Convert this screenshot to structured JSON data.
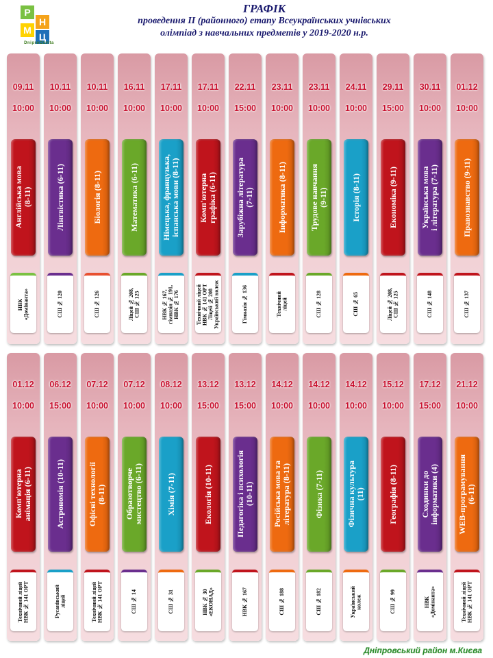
{
  "logo": {
    "letters": [
      "Р",
      "Н",
      "М",
      "Ц"
    ],
    "colors": [
      "#7ac142",
      "#f5a31a",
      "#ffd200",
      "#1f6fb8"
    ],
    "subtitle": "DniproOsvita"
  },
  "heading": {
    "title": "ГРАФІК",
    "line2": "проведення ІІ (районного) етапу Всеукраїнських учнівських",
    "line3": "олімпіад з навчальних предметів у 2019-2020 н.р."
  },
  "row1": [
    {
      "date": "09.11",
      "time": "10:00",
      "subject": "Англійська мова\n(8-11)",
      "color": "#c0141c",
      "venue": "НВК\n«Домінанта»",
      "accent": "#7ac142"
    },
    {
      "date": "10.11",
      "time": "10:00",
      "subject": "Лінгвістика (6-11)",
      "color": "#6a2e8e",
      "venue": "СШ № 120",
      "accent": "#6a2e8e"
    },
    {
      "date": "10.11",
      "time": "10:00",
      "subject": "Біологія (8-11)",
      "color": "#ee6a10",
      "venue": "СШ № 126",
      "accent": "#e85030"
    },
    {
      "date": "16.11",
      "time": "10:00",
      "subject": "Математика (6-11)",
      "color": "#6aa829",
      "venue": "Ліцей № 208,\nСШ № 125",
      "accent": "#6aa829"
    },
    {
      "date": "17.11",
      "time": "10:00",
      "subject": "Німецька, французька,\nіспанська мови (8-11)",
      "color": "#1aa0c8",
      "venue": "НВК № 167,\nгімназія № 191,\nНВК № 176",
      "accent": "#1aa0c8"
    },
    {
      "date": "17.11",
      "time": "10:00",
      "subject": "Комп'ютерна\nграфіка (6-11)",
      "color": "#c0141c",
      "venue": "Технічний ліцей\nНВК № 141 ОРТ\nЛіцей № 208\nУкраїнський колеж",
      "accent": "#c0141c"
    },
    {
      "date": "22.11",
      "time": "15:00",
      "subject": "Зарубіжна література\n(7-11)",
      "color": "#6a2e8e",
      "venue": "Гімназія № 136",
      "accent": "#1aa0c8"
    },
    {
      "date": "23.11",
      "time": "10:00",
      "subject": "Інформатика (8-11)",
      "color": "#ee6a10",
      "venue": "Технічний\nліцей",
      "accent": "#c0141c"
    },
    {
      "date": "23.11",
      "time": "10:00",
      "subject": "Трудове навчання\n(9-11)",
      "color": "#6aa829",
      "venue": "СШ № 128",
      "accent": "#6aa829"
    },
    {
      "date": "24.11",
      "time": "10:00",
      "subject": "Історія (8-11)",
      "color": "#1aa0c8",
      "venue": "СШ № 65",
      "accent": "#ee6a10"
    },
    {
      "date": "29.11",
      "time": "15:00",
      "subject": "Економіка (9-11)",
      "color": "#c0141c",
      "venue": "Ліцей № 208,\nСШ № 125",
      "accent": "#c0141c"
    },
    {
      "date": "30.11",
      "time": "10:00",
      "subject": "Українська мова\nі література (7-11)",
      "color": "#6a2e8e",
      "venue": "СШ № 148",
      "accent": "#c0141c"
    },
    {
      "date": "01.12",
      "time": "10:00",
      "subject": "Правознавство (9-11)",
      "color": "#ee6a10",
      "venue": "СШ № 137",
      "accent": "#c0141c"
    }
  ],
  "row2": [
    {
      "date": "01.12",
      "time": "10:00",
      "subject": "Комп'ютерна\nанімація (6-11)",
      "color": "#c0141c",
      "venue": "Технічний ліцей\nНВК № 141 ОРТ",
      "accent": "#c0141c"
    },
    {
      "date": "06.12",
      "time": "15:00",
      "subject": "Астрономія (10-11)",
      "color": "#6a2e8e",
      "venue": "Русанівський\nліцей",
      "accent": "#1aa0c8"
    },
    {
      "date": "07.12",
      "time": "10:00",
      "subject": "Офісні технології\n(8-11)",
      "color": "#ee6a10",
      "venue": "Технічний ліцей\nНВК № 141 ОРТ",
      "accent": "#c0141c"
    },
    {
      "date": "07.12",
      "time": "10:00",
      "subject": "Образотворче\nмистецтво (6-11)",
      "color": "#6aa829",
      "venue": "СШ № 14",
      "accent": "#6a2e8e"
    },
    {
      "date": "08.12",
      "time": "10:00",
      "subject": "Хімія (7-11)",
      "color": "#1aa0c8",
      "venue": "СШ № 31",
      "accent": "#ee6a10"
    },
    {
      "date": "13.12",
      "time": "15:00",
      "subject": "Екологія (10-11)",
      "color": "#c0141c",
      "venue": "НВК № 30\n«ЕКОНАД»",
      "accent": "#6aa829"
    },
    {
      "date": "13.12",
      "time": "15:00",
      "subject": "Педагогіка і психологія\n(10-11)",
      "color": "#6a2e8e",
      "venue": "НВК № 167",
      "accent": "#c0141c"
    },
    {
      "date": "14.12",
      "time": "10:00",
      "subject": "Російська мова та\nлітература (8-11)",
      "color": "#ee6a10",
      "venue": "СШ № 188",
      "accent": "#ee6a10"
    },
    {
      "date": "14.12",
      "time": "10:00",
      "subject": "Фізика (7-11)",
      "color": "#6aa829",
      "venue": "СШ № 182",
      "accent": "#6aa829"
    },
    {
      "date": "14.12",
      "time": "10:00",
      "subject": "Фізична культура\n(11)",
      "color": "#1aa0c8",
      "venue": "Український\nколеж",
      "accent": "#ee6a10"
    },
    {
      "date": "15.12",
      "time": "10:00",
      "subject": "Географія (8-11)",
      "color": "#c0141c",
      "venue": "СШ № 99",
      "accent": "#6aa829"
    },
    {
      "date": "17.12",
      "time": "15:00",
      "subject": "Сходинки до\nінформатики (4)",
      "color": "#6a2e8e",
      "venue": "НВК\n«Домінанта»",
      "accent": "#6a2e8e"
    },
    {
      "date": "21.12",
      "time": "10:00",
      "subject": "WEB-програмування\n(6-11)",
      "color": "#ee6a10",
      "venue": "Технічний ліцей\nНВК № 141 ОРТ",
      "accent": "#c0141c"
    }
  ],
  "footer": "Дніпровський район м.Києва"
}
